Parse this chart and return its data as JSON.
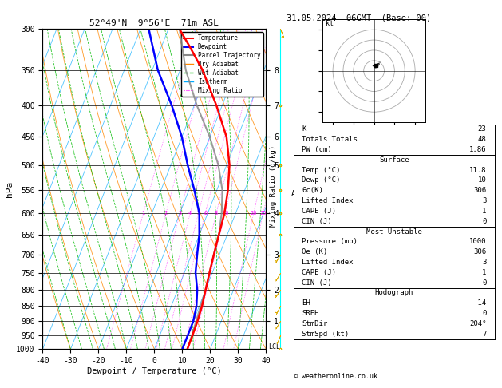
{
  "title_left": "52°49'N  9°56'E  71m ASL",
  "title_right": "31.05.2024  06GMT  (Base: 00)",
  "xlabel": "Dewpoint / Temperature (°C)",
  "ylabel_left": "hPa",
  "copyright": "© weatheronline.co.uk",
  "pressure_ticks": [
    300,
    350,
    400,
    450,
    500,
    550,
    600,
    650,
    700,
    750,
    800,
    850,
    900,
    950,
    1000
  ],
  "temp_ticks": [
    -40,
    -30,
    -20,
    -10,
    0,
    10,
    20,
    30,
    40
  ],
  "km_ticks": [
    1,
    2,
    3,
    4,
    5,
    6,
    7,
    8
  ],
  "km_pressures": [
    900,
    800,
    700,
    600,
    500,
    450,
    400,
    350
  ],
  "lcl_pressure": 990,
  "skew_factor": 45,
  "temperature_profile": {
    "pressure": [
      300,
      320,
      350,
      400,
      450,
      500,
      550,
      600,
      650,
      700,
      750,
      800,
      850,
      900,
      950,
      1000
    ],
    "temp": [
      -36,
      -30,
      -22,
      -12,
      -4,
      1,
      4,
      6,
      7,
      8,
      9,
      10,
      11,
      11.5,
      11.7,
      11.8
    ]
  },
  "dewpoint_profile": {
    "pressure": [
      300,
      350,
      400,
      450,
      500,
      550,
      600,
      650,
      700,
      750,
      800,
      850,
      900,
      950,
      1000
    ],
    "temp": [
      -47,
      -38,
      -28,
      -20,
      -14,
      -8,
      -3,
      0,
      2,
      4,
      7,
      9,
      10,
      10,
      10
    ]
  },
  "parcel_profile": {
    "pressure": [
      300,
      350,
      400,
      450,
      500,
      550,
      600,
      650,
      700,
      750,
      800,
      850,
      900,
      950,
      1000
    ],
    "temp": [
      -36,
      -28,
      -19,
      -10,
      -3,
      2,
      5,
      7,
      8,
      9,
      10,
      10.5,
      11,
      11.5,
      11.8
    ]
  },
  "color_temp": "#ff0000",
  "color_dewpoint": "#0000ff",
  "color_parcel": "#888888",
  "color_dry_adiabat": "#ff8800",
  "color_wet_adiabat": "#00bb00",
  "color_isotherm": "#00aaff",
  "color_mixing_ratio": "#ff00ff",
  "color_background": "#ffffff",
  "wind_profile": {
    "pressures": [
      1000,
      950,
      900,
      850,
      800,
      750,
      700,
      650,
      600,
      550,
      500,
      400,
      300
    ],
    "u": [
      2,
      2,
      3,
      3,
      4,
      3,
      3,
      2,
      2,
      1,
      1,
      -1,
      -2
    ],
    "v": [
      4,
      5,
      5,
      6,
      6,
      5,
      5,
      4,
      3,
      3,
      3,
      4,
      5
    ]
  },
  "stats_lines": [
    [
      "K",
      "23"
    ],
    [
      "Totals Totals",
      "48"
    ],
    [
      "PW (cm)",
      "1.86"
    ]
  ],
  "surface_lines": [
    [
      "Temp (°C)",
      "11.8"
    ],
    [
      "Dewp (°C)",
      "10"
    ],
    [
      "θc(K)",
      "306"
    ],
    [
      "Lifted Index",
      "3"
    ],
    [
      "CAPE (J)",
      "1"
    ],
    [
      "CIN (J)",
      "0"
    ]
  ],
  "mu_lines": [
    [
      "Pressure (mb)",
      "1000"
    ],
    [
      "θe (K)",
      "306"
    ],
    [
      "Lifted Index",
      "3"
    ],
    [
      "CAPE (J)",
      "1"
    ],
    [
      "CIN (J)",
      "0"
    ]
  ],
  "hodo_lines": [
    [
      "EH",
      "-14"
    ],
    [
      "SREH",
      "0"
    ],
    [
      "StmDir",
      "204°"
    ],
    [
      "StmSpd (kt)",
      "7"
    ]
  ]
}
